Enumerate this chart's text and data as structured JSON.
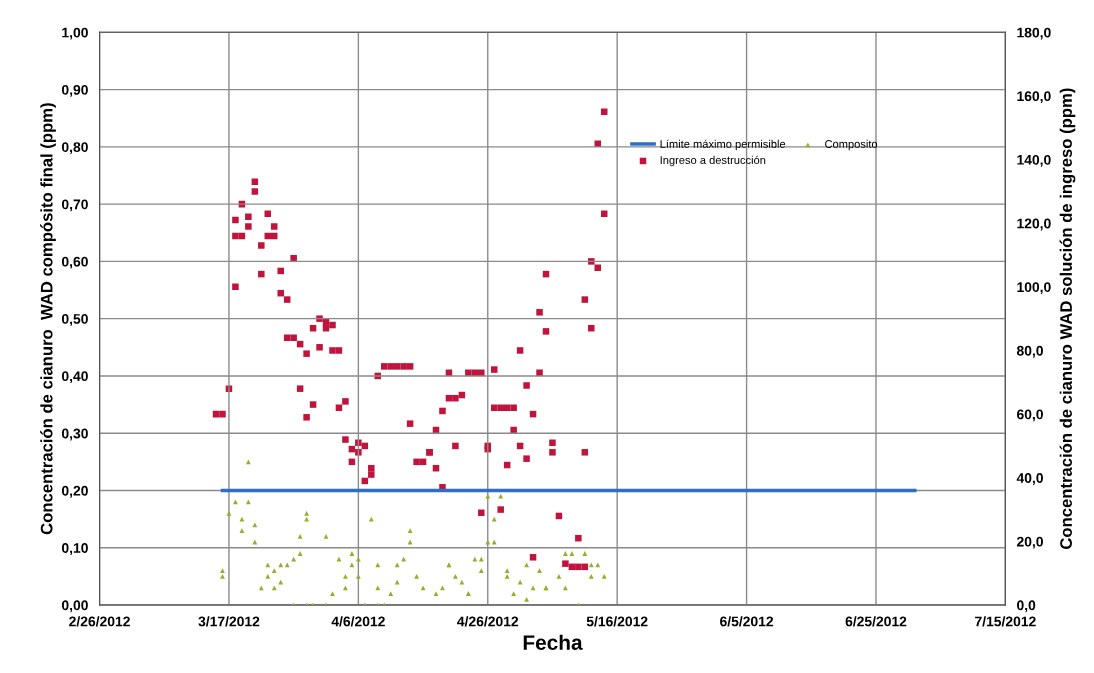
{
  "chart_data": {
    "type": "scatter",
    "xlabel": "Fecha",
    "ylabel": "Concentración de cianuro  WAD compósito final (ppm)",
    "y2label": "Concentración de cianuro WAD solución de ingreso (ppm)",
    "xlim": [
      "2012-02-26",
      "2012-07-15"
    ],
    "xticks": [
      {
        "value": "2012-02-26",
        "label": "2/26/2012"
      },
      {
        "value": "2012-03-17",
        "label": "3/17/2012"
      },
      {
        "value": "2012-04-06",
        "label": "4/6/2012"
      },
      {
        "value": "2012-04-26",
        "label": "4/26/2012"
      },
      {
        "value": "2012-05-16",
        "label": "5/16/2012"
      },
      {
        "value": "2012-06-05",
        "label": "6/5/2012"
      },
      {
        "value": "2012-06-25",
        "label": "6/25/2012"
      },
      {
        "value": "2012-07-15",
        "label": "7/15/2012"
      }
    ],
    "ylim": [
      0,
      1
    ],
    "yticks": [
      {
        "value": 0,
        "label": "0,00"
      },
      {
        "value": 0.1,
        "label": "0,10"
      },
      {
        "value": 0.2,
        "label": "0,20"
      },
      {
        "value": 0.3,
        "label": "0,30"
      },
      {
        "value": 0.4,
        "label": "0,40"
      },
      {
        "value": 0.5,
        "label": "0,50"
      },
      {
        "value": 0.6,
        "label": "0,60"
      },
      {
        "value": 0.7,
        "label": "0,70"
      },
      {
        "value": 0.8,
        "label": "0,80"
      },
      {
        "value": 0.9,
        "label": "0,90"
      },
      {
        "value": 1,
        "label": "1,00"
      }
    ],
    "y2lim": [
      0,
      180
    ],
    "y2ticks": [
      {
        "value": 0,
        "label": "0,0"
      },
      {
        "value": 20,
        "label": "20,0"
      },
      {
        "value": 40,
        "label": "40,0"
      },
      {
        "value": 60,
        "label": "60,0"
      },
      {
        "value": 80,
        "label": "80,0"
      },
      {
        "value": 100,
        "label": "100,0"
      },
      {
        "value": 120,
        "label": "120,0"
      },
      {
        "value": 140,
        "label": "140,0"
      },
      {
        "value": 160,
        "label": "160,0"
      },
      {
        "value": 180,
        "label": "180,0"
      }
    ],
    "grid": true,
    "legend": "top right",
    "series": [
      {
        "name": "Límite máximo permisible",
        "type": "line",
        "color": "#2f6ec6",
        "marker": "none",
        "line_style": "solid",
        "x": [
          "2012-03-16",
          "2012-07-01"
        ],
        "values": [
          0.2,
          0.2
        ]
      },
      {
        "name": "Ingreso a destrucción",
        "axis": "y2",
        "color": "#c0143c",
        "marker": "square",
        "x": [
          "2012-03-15",
          "2012-03-16",
          "2012-03-17",
          "2012-03-18",
          "2012-03-18",
          "2012-03-19",
          "2012-03-18",
          "2012-03-19",
          "2012-03-20",
          "2012-03-20",
          "2012-03-21",
          "2012-03-21",
          "2012-03-22",
          "2012-03-22",
          "2012-03-23",
          "2012-03-24",
          "2012-03-23",
          "2012-03-24",
          "2012-03-25",
          "2012-03-25",
          "2012-03-26",
          "2012-03-27",
          "2012-03-26",
          "2012-03-27",
          "2012-03-28",
          "2012-03-28",
          "2012-03-29",
          "2012-03-29",
          "2012-03-30",
          "2012-03-30",
          "2012-03-31",
          "2012-03-31",
          "2012-04-01",
          "2012-04-01",
          "2012-04-02",
          "2012-04-02",
          "2012-04-03",
          "2012-04-03",
          "2012-04-04",
          "2012-04-04",
          "2012-04-05",
          "2012-04-05",
          "2012-04-06",
          "2012-04-06",
          "2012-04-07",
          "2012-04-07",
          "2012-04-08",
          "2012-04-08",
          "2012-04-09",
          "2012-04-10",
          "2012-04-11",
          "2012-04-12",
          "2012-04-13",
          "2012-04-14",
          "2012-04-14",
          "2012-04-15",
          "2012-04-16",
          "2012-04-17",
          "2012-04-17",
          "2012-04-18",
          "2012-04-18",
          "2012-04-19",
          "2012-04-19",
          "2012-04-20",
          "2012-04-20",
          "2012-04-21",
          "2012-04-21",
          "2012-04-22",
          "2012-04-23",
          "2012-04-24",
          "2012-04-25",
          "2012-04-25",
          "2012-04-26",
          "2012-04-26",
          "2012-04-27",
          "2012-04-27",
          "2012-04-28",
          "2012-04-28",
          "2012-04-29",
          "2012-04-29",
          "2012-04-30",
          "2012-04-30",
          "2012-05-01",
          "2012-05-01",
          "2012-05-02",
          "2012-05-02",
          "2012-05-03",
          "2012-05-03",
          "2012-05-04",
          "2012-05-04",
          "2012-05-05",
          "2012-05-05",
          "2012-05-06",
          "2012-05-06",
          "2012-05-07",
          "2012-05-08",
          "2012-05-09",
          "2012-05-10",
          "2012-05-11",
          "2012-05-10",
          "2012-05-11",
          "2012-05-11",
          "2012-05-12",
          "2012-05-12",
          "2012-05-13",
          "2012-05-13",
          "2012-05-14",
          "2012-05-14"
        ],
        "values": [
          60,
          60,
          68,
          100,
          121,
          126,
          116,
          116,
          119,
          122,
          130,
          133,
          113,
          104,
          116,
          116,
          123,
          119,
          105,
          98,
          84,
          84,
          96,
          109,
          68,
          82,
          59,
          79,
          63,
          87,
          81,
          90,
          87,
          89,
          88,
          80,
          80,
          62,
          64,
          52,
          49,
          45,
          51,
          48,
          50,
          39,
          41,
          43,
          72,
          75,
          75,
          75,
          75,
          75,
          57,
          45,
          45,
          48,
          48,
          43,
          55,
          37,
          61,
          65,
          73,
          50,
          65,
          66,
          73,
          73,
          73,
          29,
          50,
          49,
          62,
          74,
          62,
          30,
          44,
          62,
          55,
          62,
          50,
          80,
          69,
          46,
          15,
          60,
          73,
          92,
          86,
          104,
          51,
          48,
          28,
          13,
          12,
          12,
          12,
          21,
          48,
          96,
          87,
          108,
          106,
          145,
          123,
          155
        ]
      },
      {
        "name": "Composito",
        "color": "#9aab2e",
        "marker": "triangle",
        "x": [
          "2012-03-16",
          "2012-03-16",
          "2012-03-17",
          "2012-03-18",
          "2012-03-19",
          "2012-03-19",
          "2012-03-20",
          "2012-03-20",
          "2012-03-21",
          "2012-03-21",
          "2012-03-22",
          "2012-03-23",
          "2012-03-23",
          "2012-03-24",
          "2012-03-24",
          "2012-03-25",
          "2012-03-25",
          "2012-03-26",
          "2012-03-27",
          "2012-03-28",
          "2012-03-28",
          "2012-03-29",
          "2012-03-29",
          "2012-03-27",
          "2012-03-29",
          "2012-03-30",
          "2012-04-01",
          "2012-04-01",
          "2012-04-02",
          "2012-04-03",
          "2012-04-04",
          "2012-04-04",
          "2012-04-05",
          "2012-04-05",
          "2012-04-06",
          "2012-04-06",
          "2012-04-08",
          "2012-04-09",
          "2012-04-09",
          "2012-04-07",
          "2012-04-09",
          "2012-04-10",
          "2012-04-11",
          "2012-04-12",
          "2012-04-12",
          "2012-04-13",
          "2012-04-14",
          "2012-04-14",
          "2012-04-15",
          "2012-04-16",
          "2012-04-18",
          "2012-04-19",
          "2012-04-20",
          "2012-04-20",
          "2012-04-21",
          "2012-04-22",
          "2012-04-23",
          "2012-04-23",
          "2012-04-24",
          "2012-04-25",
          "2012-04-25",
          "2012-04-26",
          "2012-04-26",
          "2012-04-27",
          "2012-04-27",
          "2012-04-28",
          "2012-04-29",
          "2012-04-29",
          "2012-04-30",
          "2012-05-01",
          "2012-05-02",
          "2012-05-02",
          "2012-05-03",
          "2012-05-04",
          "2012-05-05",
          "2012-05-05",
          "2012-05-07",
          "2012-05-08",
          "2012-05-08",
          "2012-05-09",
          "2012-05-10",
          "2012-05-11",
          "2012-05-12",
          "2012-05-12",
          "2012-05-13",
          "2012-05-14"
        ],
        "values": [
          0.05,
          0.06,
          0.16,
          0.18,
          0.15,
          0.13,
          0.18,
          0.25,
          0.14,
          0.11,
          0.03,
          0.05,
          0.07,
          0.06,
          0.03,
          0.07,
          0.04,
          0.07,
          0.08,
          0.09,
          0.12,
          0.15,
          0.16,
          0,
          0,
          0,
          0,
          0.12,
          0.02,
          0.08,
          0.05,
          0.03,
          0.09,
          0.07,
          0.08,
          0.05,
          0.15,
          0.07,
          0.03,
          0,
          0,
          0,
          0.02,
          0.07,
          0.04,
          0.08,
          0.11,
          0.13,
          0.05,
          0.03,
          0.02,
          0.03,
          0.07,
          0.07,
          0.05,
          0.04,
          0.02,
          0.02,
          0.08,
          0.08,
          0.06,
          0.11,
          0.19,
          0.15,
          0.11,
          0.19,
          0.06,
          0.05,
          0.02,
          0.04,
          0.07,
          0.01,
          0.03,
          0.06,
          0.03,
          0.03,
          0.05,
          0.03,
          0.09,
          0.09,
          0,
          0.09,
          0.05,
          0.07,
          0.07,
          0.05
        ]
      }
    ]
  }
}
